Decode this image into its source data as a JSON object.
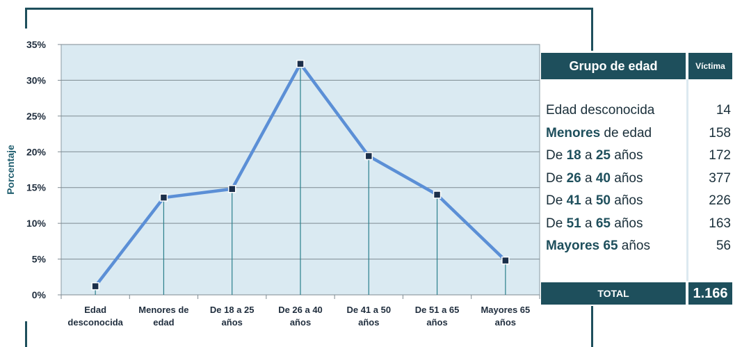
{
  "chart_data": {
    "type": "line",
    "title": "",
    "xlabel": "",
    "ylabel": "Porcentaje",
    "ylim": [
      0,
      35
    ],
    "yticks": [
      "0%",
      "5%",
      "10%",
      "15%",
      "20%",
      "25%",
      "30%",
      "35%"
    ],
    "ytick_values": [
      0,
      5,
      10,
      15,
      20,
      25,
      30,
      35
    ],
    "categories": [
      [
        "Edad",
        "desconocida"
      ],
      [
        "Menores de",
        "edad"
      ],
      [
        "De 18 a 25",
        "años"
      ],
      [
        "De 26 a 40",
        "años"
      ],
      [
        "De 41 a 50",
        "años"
      ],
      [
        "De 51 a 65",
        "años"
      ],
      [
        "Mayores 65",
        "años"
      ]
    ],
    "series": [
      {
        "values": [
          1.2,
          13.6,
          14.8,
          32.3,
          19.4,
          14.0,
          4.8
        ]
      }
    ],
    "grid": true,
    "colors": {
      "line": "#5b8fd6",
      "plot_bg": "#daeaf2",
      "marker": "#1b2f4a",
      "drop_line": "#2a7f8c"
    }
  },
  "table": {
    "header_label": "Grupo de edad",
    "header_value": "Víctima",
    "rows": [
      {
        "parts": [
          {
            "t": "Edad desconocida",
            "b": false
          }
        ],
        "value": "14"
      },
      {
        "parts": [
          {
            "t": "Menores",
            "b": true
          },
          {
            "t": " de edad",
            "b": false
          }
        ],
        "value": "158"
      },
      {
        "parts": [
          {
            "t": "De ",
            "b": false
          },
          {
            "t": "18",
            "b": true
          },
          {
            "t": " a ",
            "b": false
          },
          {
            "t": "25",
            "b": true
          },
          {
            "t": " años",
            "b": false
          }
        ],
        "value": "172"
      },
      {
        "parts": [
          {
            "t": "De ",
            "b": false
          },
          {
            "t": "26",
            "b": true
          },
          {
            "t": " a ",
            "b": false
          },
          {
            "t": "40",
            "b": true
          },
          {
            "t": " años",
            "b": false
          }
        ],
        "value": "377"
      },
      {
        "parts": [
          {
            "t": "De ",
            "b": false
          },
          {
            "t": "41",
            "b": true
          },
          {
            "t": " a ",
            "b": false
          },
          {
            "t": "50",
            "b": true
          },
          {
            "t": " años",
            "b": false
          }
        ],
        "value": "226"
      },
      {
        "parts": [
          {
            "t": "De ",
            "b": false
          },
          {
            "t": "51",
            "b": true
          },
          {
            "t": " a ",
            "b": false
          },
          {
            "t": "65",
            "b": true
          },
          {
            "t": " años",
            "b": false
          }
        ],
        "value": "163"
      },
      {
        "parts": [
          {
            "t": "Mayores 65",
            "b": true
          },
          {
            "t": " años",
            "b": false
          }
        ],
        "value": "56"
      }
    ],
    "total_label": "TOTAL",
    "total_value": "1.166"
  }
}
